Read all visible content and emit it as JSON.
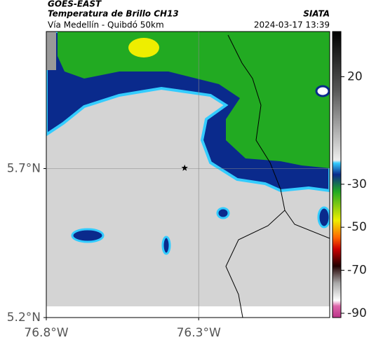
{
  "header": {
    "source": "GOES-EAST",
    "title": "Temperatura de Brillo CH13",
    "subtitle": "Vía Medellín - Quibdó 50km",
    "agency": "SIATA",
    "timestamp": "2024-03-17 13:39"
  },
  "map": {
    "lon_lim": [
      -76.8,
      -75.87
    ],
    "lat_lim": [
      5.2,
      6.16
    ],
    "lon_ticks": [
      {
        "value": -76.8,
        "label": "76.8°W"
      },
      {
        "value": -76.3,
        "label": "76.3°W"
      }
    ],
    "lat_ticks": [
      {
        "value": 5.7,
        "label": "5.7°N"
      },
      {
        "value": 5.2,
        "label": "5.2°N"
      }
    ],
    "grid": true,
    "marker": {
      "lon": -76.346,
      "lat": 5.702
    }
  },
  "colorbar": {
    "lim": [
      41,
      -92
    ],
    "ticks": [
      20,
      -30,
      -50,
      -70,
      -90
    ]
  }
}
